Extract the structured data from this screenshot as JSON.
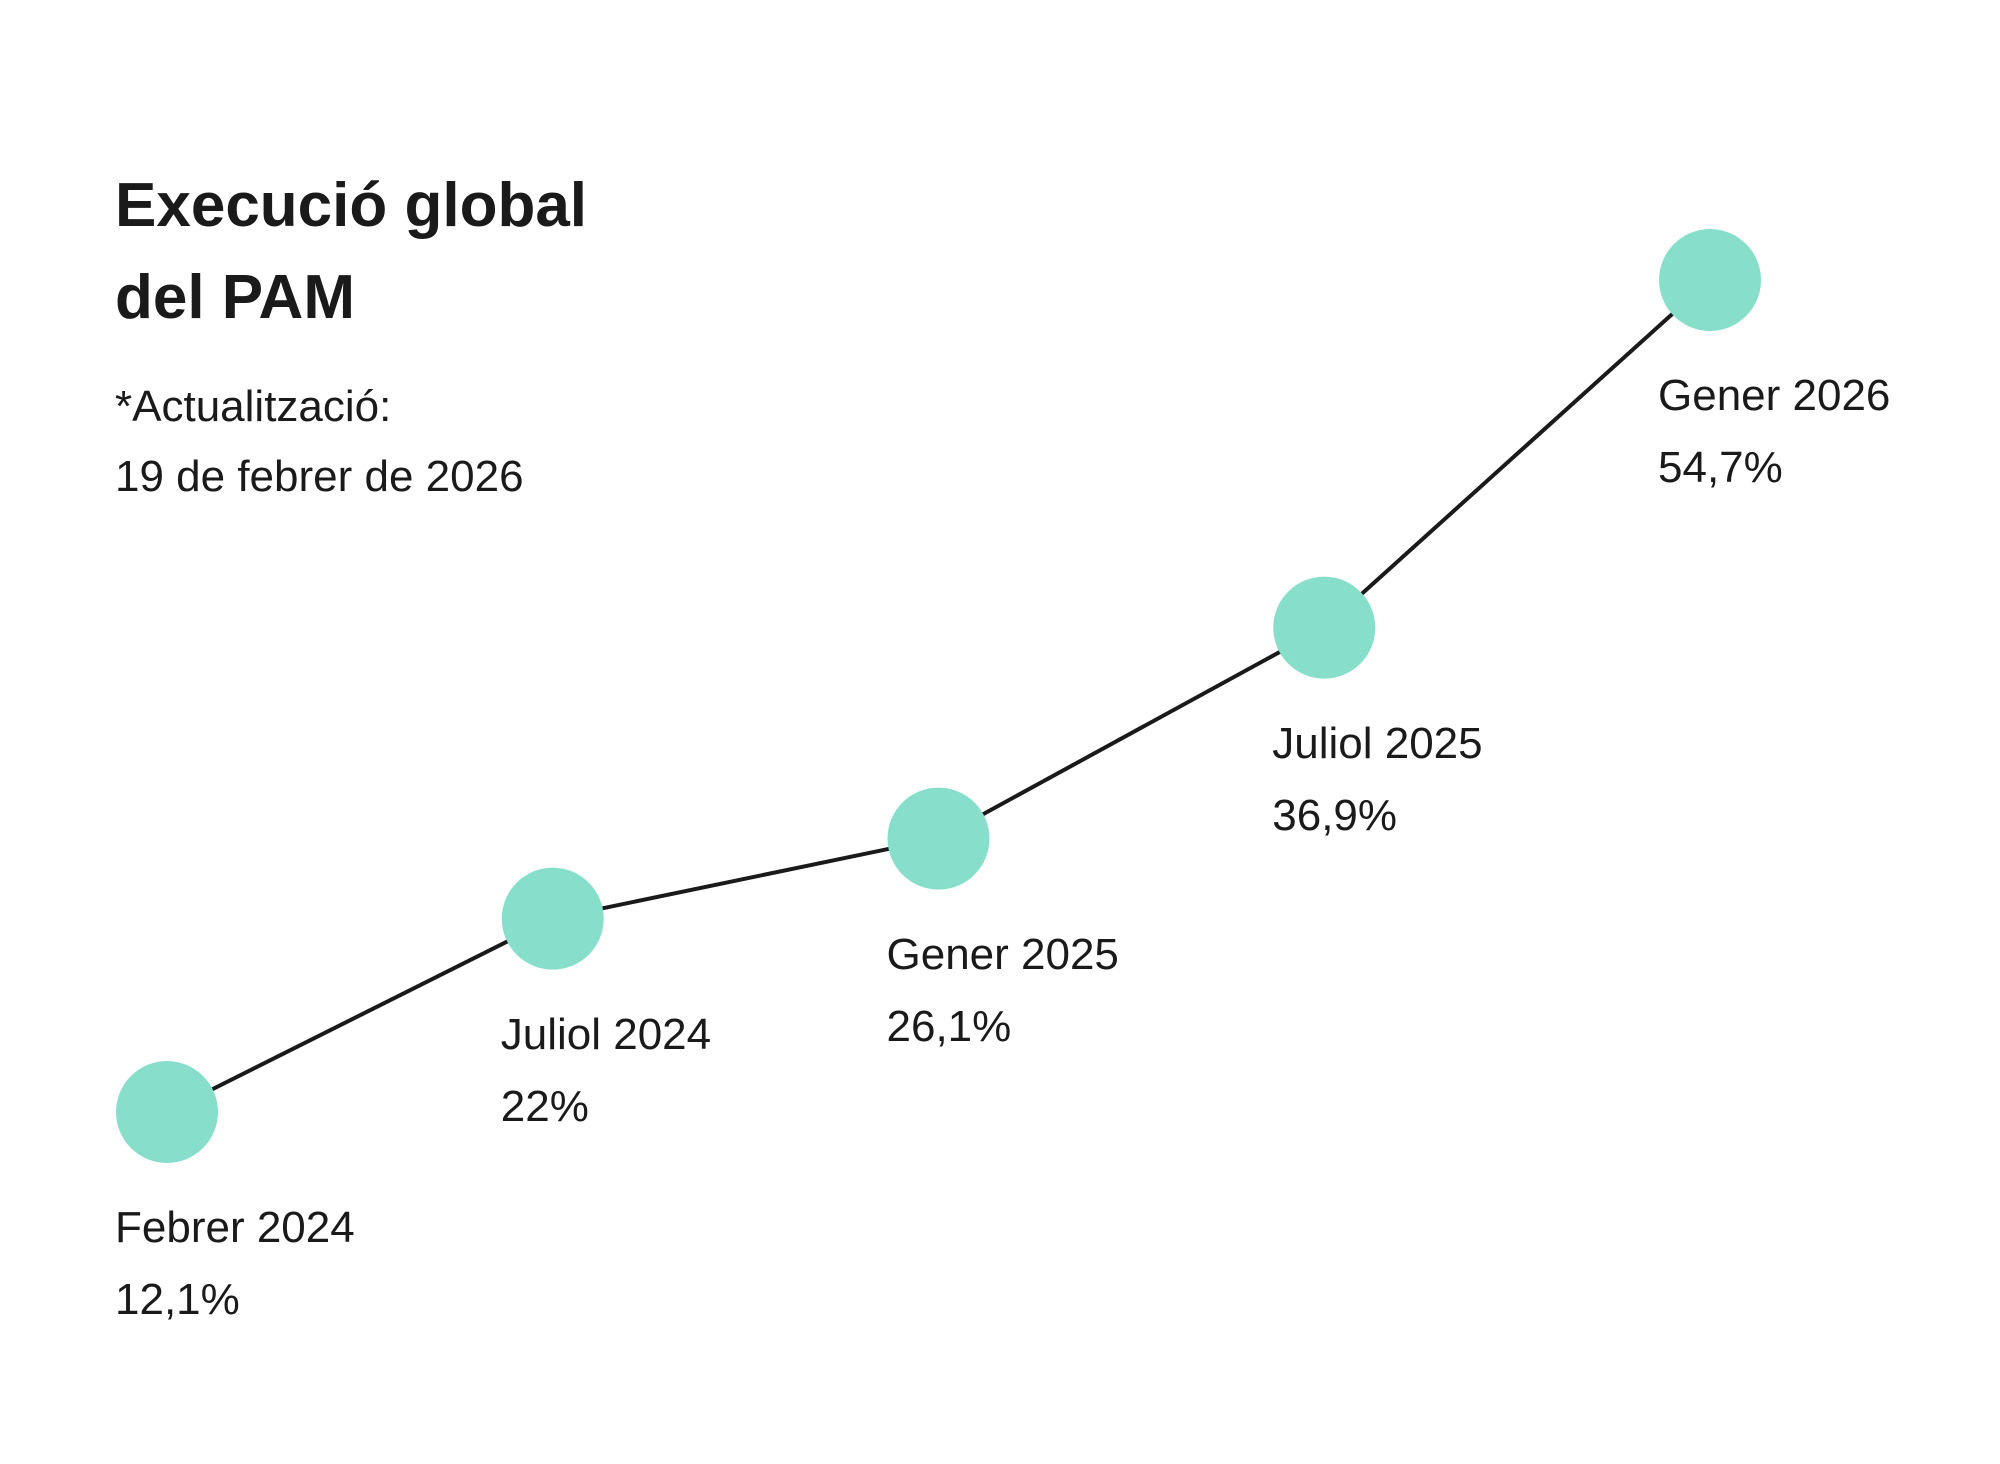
{
  "chart_data": {
    "type": "line",
    "title": [
      "Execució global",
      "del PAM"
    ],
    "subtitle": [
      "*Actualització:",
      "19 de febrer de 2026"
    ],
    "categories": [
      "Febrer 2024",
      "Juliol 2024",
      "Gener 2025",
      "Juliol 2025",
      "Gener 2026"
    ],
    "values": [
      12.1,
      22,
      26.1,
      36.9,
      54.7
    ],
    "value_labels": [
      "12,1%",
      "22%",
      "26,1%",
      "36,9%",
      "54,7%"
    ],
    "grid": false,
    "legend": "none"
  },
  "colors": {
    "marker": "#87dfcb",
    "line": "#1a1a1a",
    "text": "#1a1a1a"
  }
}
